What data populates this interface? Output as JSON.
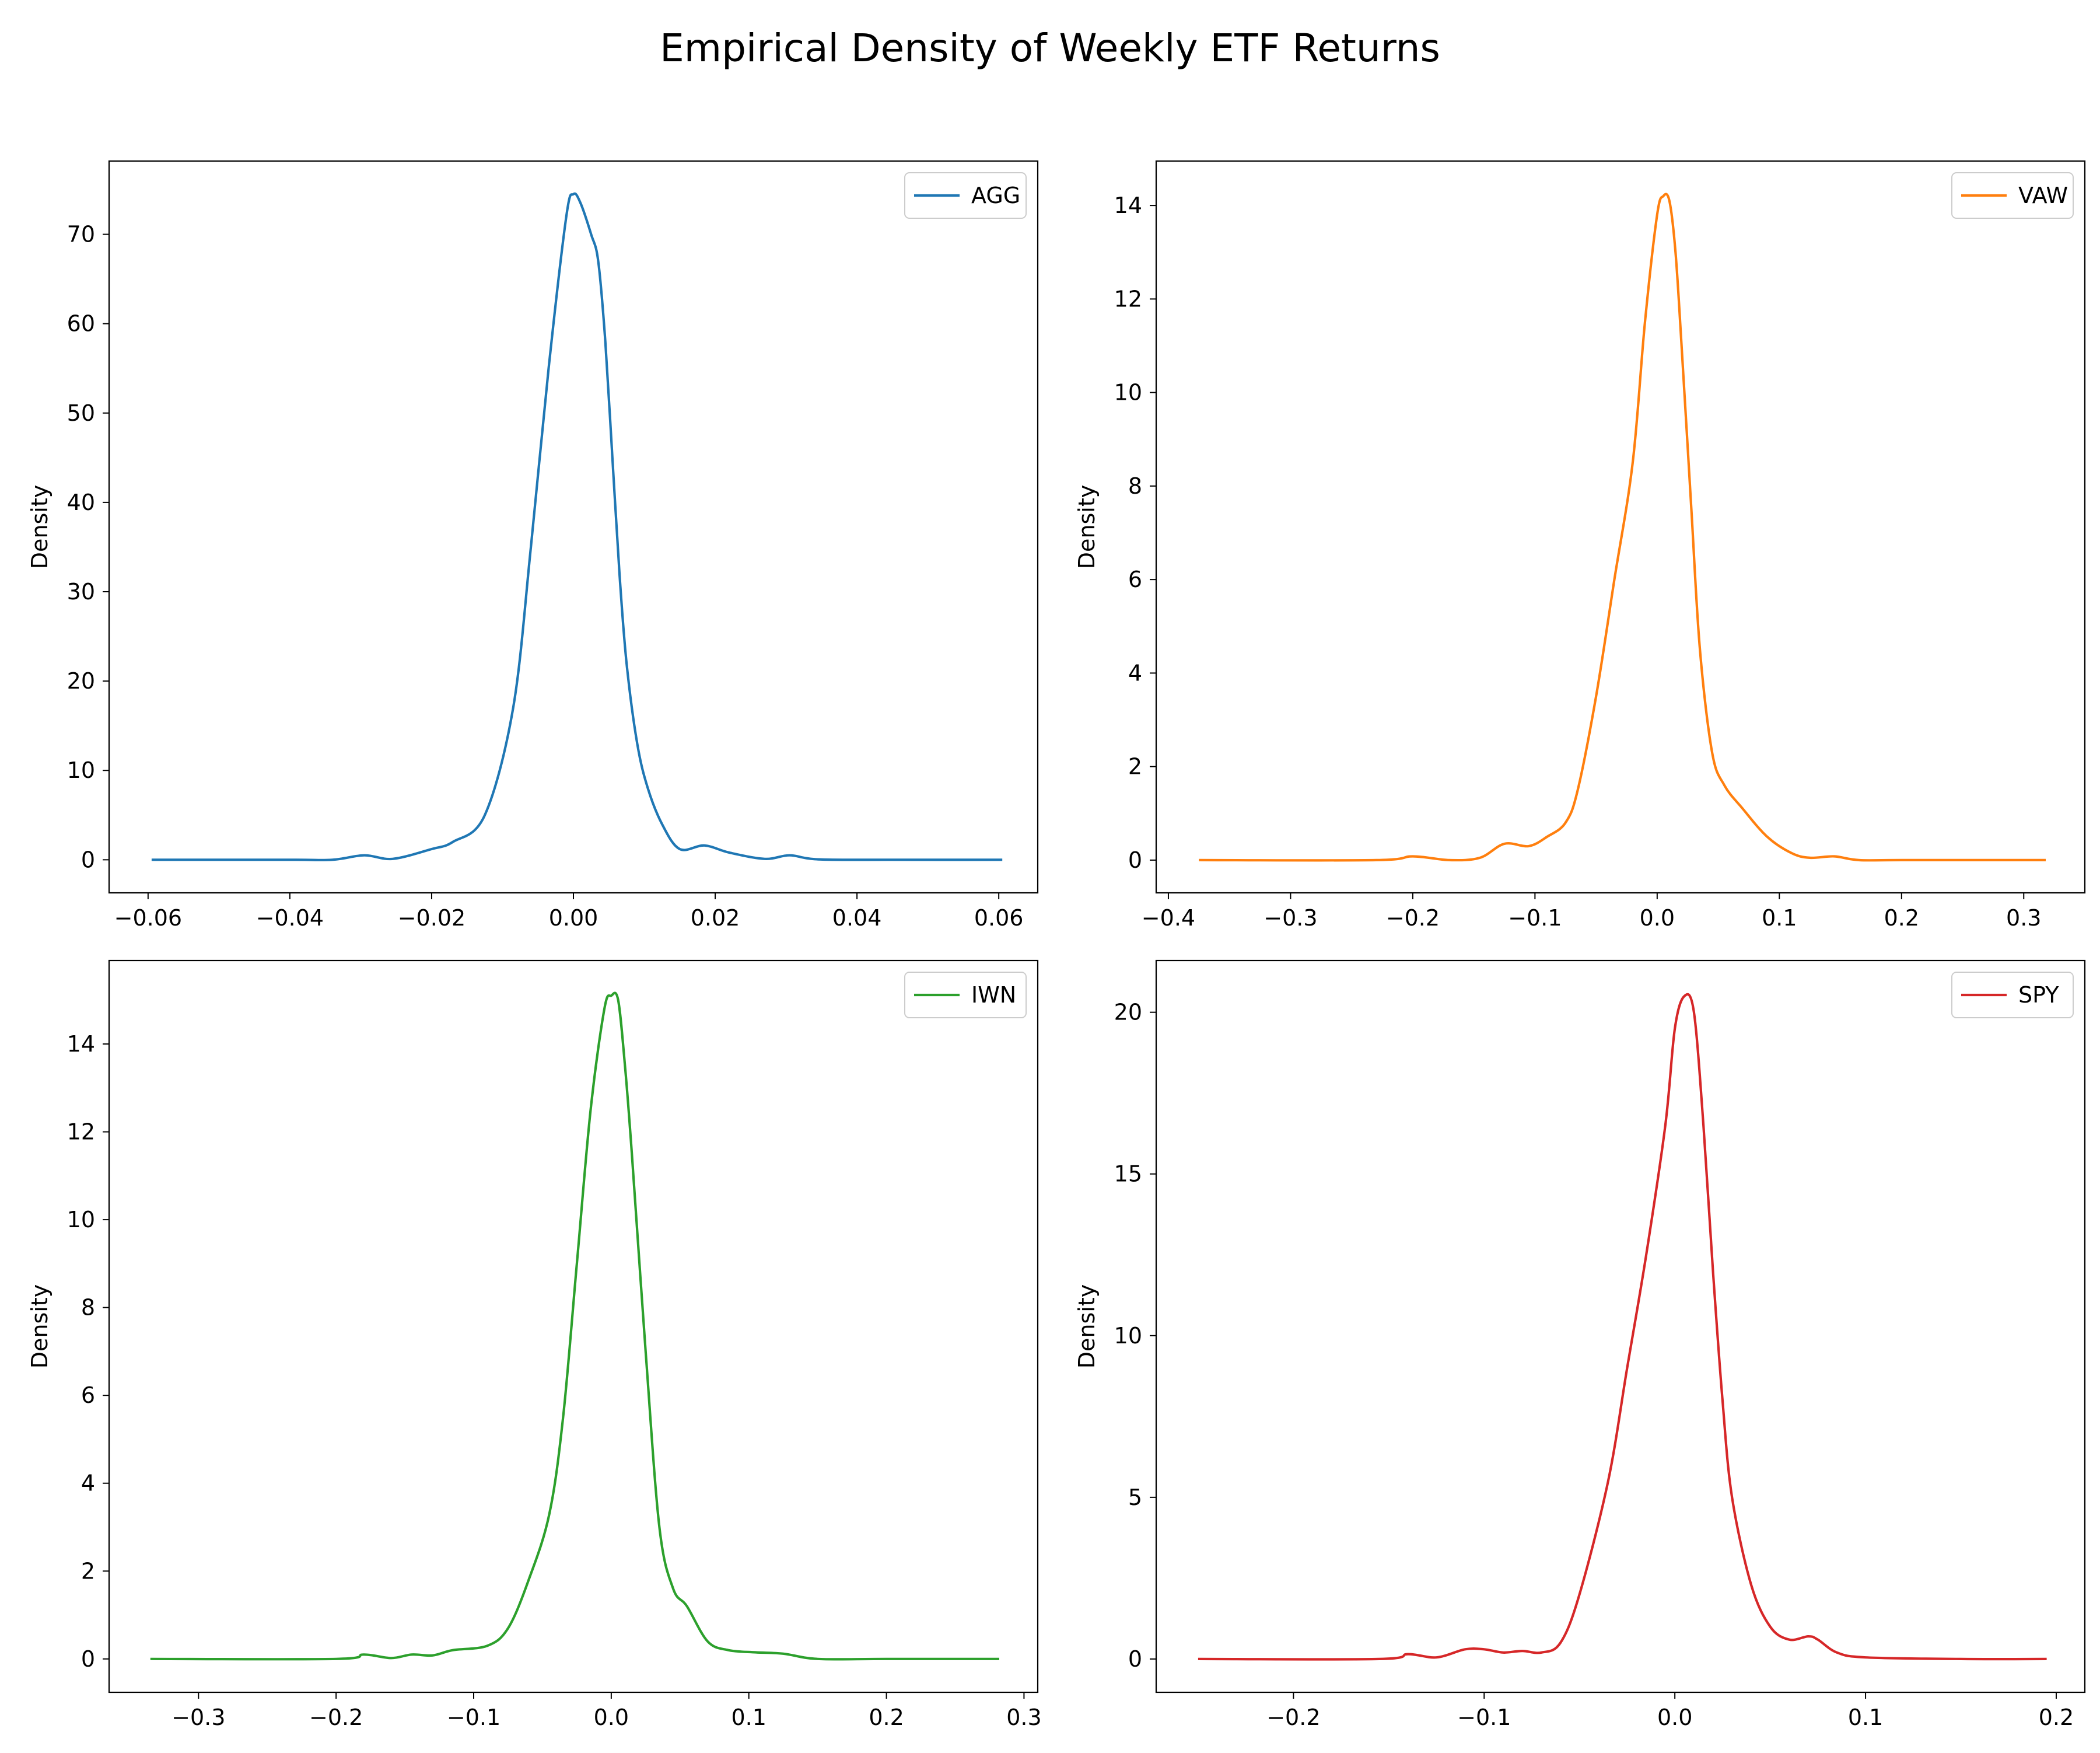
{
  "figure": {
    "title": "Empirical Density of Weekly ETF Returns"
  },
  "chart_data": [
    {
      "type": "line",
      "name": "AGG",
      "color": "#1f77b4",
      "ylabel": "Density",
      "xlim": [
        -0.0655,
        0.0655
      ],
      "ylim": [
        -3.7,
        78.2
      ],
      "xticks": [
        -0.06,
        -0.04,
        -0.02,
        0.0,
        0.02,
        0.04,
        0.06
      ],
      "xtick_labels": [
        "−0.06",
        "−0.04",
        "−0.02",
        "0.00",
        "0.02",
        "0.04",
        "0.06"
      ],
      "yticks": [
        0,
        10,
        20,
        30,
        40,
        50,
        60,
        70
      ],
      "ytick_labels": [
        "0",
        "10",
        "20",
        "30",
        "40",
        "50",
        "60",
        "70"
      ],
      "legend": {
        "label": "AGG",
        "position": "top-right"
      },
      "x": [
        -0.0595,
        -0.04,
        -0.034,
        -0.0295,
        -0.0255,
        -0.02,
        -0.017,
        -0.0125,
        -0.0085,
        -0.006,
        -0.0035,
        -0.001,
        0.0,
        0.001,
        0.0025,
        0.0035,
        0.0045,
        0.0055,
        0.0065,
        0.0075,
        0.009,
        0.0105,
        0.0125,
        0.015,
        0.0185,
        0.022,
        0.027,
        0.0305,
        0.0345,
        0.045,
        0.0605
      ],
      "y": [
        0,
        0,
        0,
        0.5,
        0.1,
        1.2,
        2.0,
        5.0,
        17.0,
        35.0,
        55.0,
        72.0,
        74.5,
        73.5,
        70.0,
        67.0,
        58.0,
        45.0,
        32.0,
        22.0,
        13.0,
        8.0,
        4.0,
        1.2,
        1.6,
        0.8,
        0.1,
        0.5,
        0.05,
        0,
        0
      ]
    },
    {
      "type": "line",
      "name": "VAW",
      "color": "#ff7f0e",
      "ylabel": "Density",
      "xlim": [
        -0.41,
        0.35
      ],
      "ylim": [
        -0.7,
        14.95
      ],
      "xticks": [
        -0.4,
        -0.3,
        -0.2,
        -0.1,
        0.0,
        0.1,
        0.2,
        0.3
      ],
      "xtick_labels": [
        "−0.4",
        "−0.3",
        "−0.2",
        "−0.1",
        "0.0",
        "0.1",
        "0.2",
        "0.3"
      ],
      "yticks": [
        0,
        2,
        4,
        6,
        8,
        10,
        12,
        14
      ],
      "ytick_labels": [
        "0",
        "2",
        "4",
        "6",
        "8",
        "10",
        "12",
        "14"
      ],
      "legend": {
        "label": "VAW",
        "position": "top-right"
      },
      "x": [
        -0.375,
        -0.23,
        -0.2,
        -0.17,
        -0.145,
        -0.125,
        -0.105,
        -0.09,
        -0.075,
        -0.065,
        -0.05,
        -0.035,
        -0.02,
        -0.01,
        0.0,
        0.005,
        0.01,
        0.015,
        0.02,
        0.028,
        0.035,
        0.045,
        0.055,
        0.07,
        0.09,
        0.11,
        0.125,
        0.145,
        0.165,
        0.2,
        0.318
      ],
      "y": [
        0,
        0,
        0.08,
        0.0,
        0.05,
        0.35,
        0.3,
        0.5,
        0.8,
        1.5,
        3.5,
        6.0,
        8.5,
        11.5,
        13.8,
        14.2,
        14.1,
        13.0,
        11.0,
        7.5,
        4.5,
        2.3,
        1.6,
        1.1,
        0.5,
        0.15,
        0.05,
        0.08,
        0.0,
        0,
        0
      ]
    },
    {
      "type": "line",
      "name": "IWN",
      "color": "#2ca02c",
      "ylabel": "Density",
      "xlim": [
        -0.365,
        0.31
      ],
      "ylim": [
        -0.76,
        15.9
      ],
      "xticks": [
        -0.3,
        -0.2,
        -0.1,
        0.0,
        0.1,
        0.2,
        0.3
      ],
      "xtick_labels": [
        "−0.3",
        "−0.2",
        "−0.1",
        "0.0",
        "0.1",
        "0.2",
        "0.3"
      ],
      "yticks": [
        0,
        2,
        4,
        6,
        8,
        10,
        12,
        14
      ],
      "ytick_labels": [
        "0",
        "2",
        "4",
        "6",
        "8",
        "10",
        "12",
        "14"
      ],
      "legend": {
        "label": "IWN",
        "position": "top-right"
      },
      "x": [
        -0.335,
        -0.2,
        -0.18,
        -0.16,
        -0.145,
        -0.13,
        -0.115,
        -0.09,
        -0.075,
        -0.06,
        -0.045,
        -0.035,
        -0.025,
        -0.015,
        -0.005,
        0.0,
        0.005,
        0.01,
        0.015,
        0.025,
        0.035,
        0.045,
        0.055,
        0.07,
        0.085,
        0.105,
        0.125,
        0.15,
        0.2,
        0.282
      ],
      "y": [
        0,
        0,
        0.1,
        0.02,
        0.1,
        0.08,
        0.2,
        0.3,
        0.7,
        1.8,
        3.3,
        5.5,
        9.0,
        12.5,
        14.8,
        15.1,
        15.0,
        13.5,
        11.5,
        7.0,
        3.0,
        1.6,
        1.2,
        0.4,
        0.2,
        0.15,
        0.12,
        0.0,
        0,
        0
      ]
    },
    {
      "type": "line",
      "name": "SPY",
      "color": "#d62728",
      "ylabel": "Density",
      "xlim": [
        -0.272,
        0.215
      ],
      "ylim": [
        -1.03,
        21.6
      ],
      "xticks": [
        -0.2,
        -0.1,
        0.0,
        0.1,
        0.2
      ],
      "xtick_labels": [
        "−0.2",
        "−0.1",
        "0.0",
        "0.1",
        "0.2"
      ],
      "yticks": [
        0,
        5,
        10,
        15,
        20
      ],
      "ytick_labels": [
        "0",
        "5",
        "10",
        "15",
        "20"
      ],
      "legend": {
        "label": "SPY",
        "position": "top-right"
      },
      "x": [
        -0.25,
        -0.155,
        -0.14,
        -0.125,
        -0.11,
        -0.1,
        -0.09,
        -0.08,
        -0.07,
        -0.06,
        -0.05,
        -0.035,
        -0.025,
        -0.015,
        -0.005,
        0.0,
        0.005,
        0.01,
        0.015,
        0.02,
        0.025,
        0.03,
        0.04,
        0.05,
        0.06,
        0.07,
        0.075,
        0.085,
        0.1,
        0.15,
        0.195
      ],
      "y": [
        0,
        0,
        0.15,
        0.05,
        0.3,
        0.3,
        0.2,
        0.25,
        0.2,
        0.5,
        2.0,
        5.5,
        9.0,
        12.5,
        16.5,
        19.5,
        20.5,
        20.0,
        16.5,
        12.0,
        8.0,
        5.0,
        2.3,
        1.0,
        0.6,
        0.7,
        0.6,
        0.2,
        0.05,
        0,
        0
      ]
    }
  ]
}
